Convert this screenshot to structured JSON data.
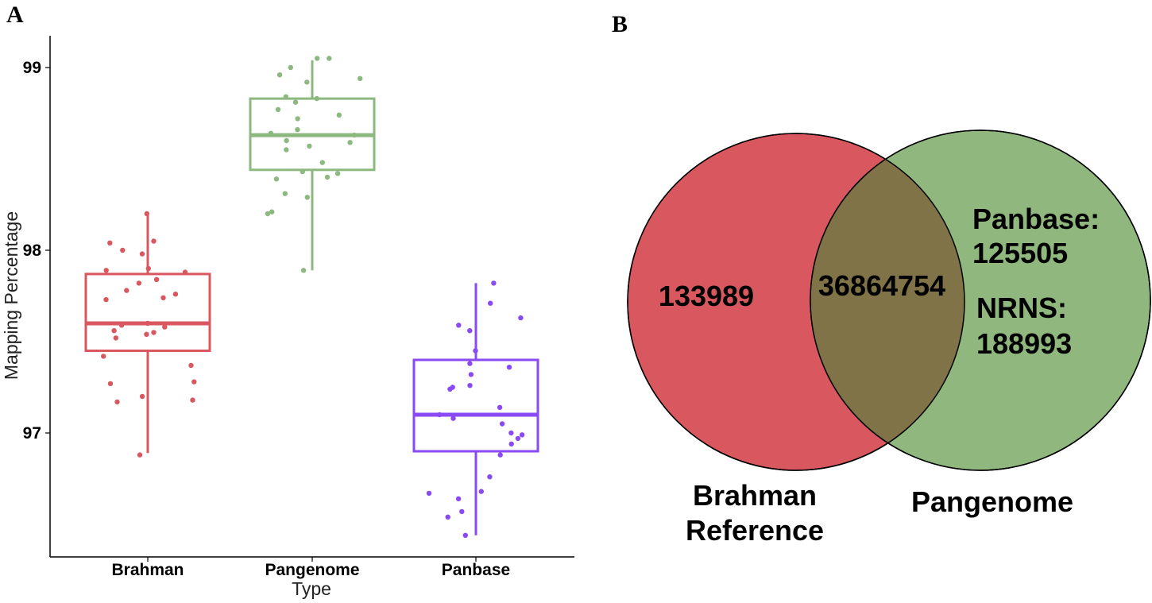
{
  "panels": {
    "a": "A",
    "b": "B"
  },
  "colors": {
    "brahman": "#d9575f",
    "pangenome": "#8db87f",
    "panbase": "#8a4af3",
    "venn_left": "#d9575f",
    "venn_right": "#8fb77e",
    "venn_overlap": "#807347"
  },
  "chart_data": [
    {
      "type": "box",
      "title": "",
      "xlabel": "Type",
      "ylabel": "Mapping Percentage",
      "ylim": [
        96.35,
        99.2
      ],
      "yticks": [
        97,
        98,
        99
      ],
      "categories": [
        "Brahman",
        "Pangenome",
        "Panbase"
      ],
      "boxes": [
        {
          "name": "Brahman",
          "min": 96.89,
          "q1": 97.45,
          "median": 97.6,
          "q3": 97.87,
          "max": 98.21,
          "points": [
            98.2,
            98.05,
            98.04,
            98.0,
            97.98,
            97.9,
            97.89,
            97.88,
            97.84,
            97.82,
            97.78,
            97.76,
            97.74,
            97.73,
            97.6,
            97.59,
            97.58,
            97.56,
            97.55,
            97.54,
            97.52,
            97.42,
            97.37,
            97.28,
            97.27,
            97.2,
            97.18,
            97.17,
            96.88
          ]
        },
        {
          "name": "Pangenome",
          "min": 97.89,
          "q1": 98.44,
          "median": 98.63,
          "q3": 98.83,
          "max": 99.04,
          "points": [
            99.05,
            99.05,
            99.0,
            98.96,
            98.94,
            98.92,
            98.84,
            98.83,
            98.81,
            98.77,
            98.74,
            98.72,
            98.66,
            98.64,
            98.63,
            98.6,
            98.59,
            98.57,
            98.55,
            98.48,
            98.43,
            98.42,
            98.4,
            98.39,
            98.31,
            98.29,
            98.21,
            98.2,
            97.89
          ]
        },
        {
          "name": "Panbase",
          "min": 96.44,
          "q1": 96.9,
          "median": 97.1,
          "q3": 97.4,
          "max": 97.82,
          "points": [
            97.82,
            97.71,
            97.63,
            97.59,
            97.56,
            97.45,
            97.38,
            97.36,
            97.32,
            97.26,
            97.25,
            97.24,
            97.14,
            97.1,
            97.08,
            97.05,
            97.0,
            96.99,
            96.97,
            96.94,
            96.88,
            96.76,
            96.68,
            96.67,
            96.64,
            96.57,
            96.54,
            96.44
          ]
        }
      ]
    },
    {
      "type": "venn",
      "sets": [
        {
          "name": "Brahman\nReference",
          "label_lines": [
            "Brahman",
            "Reference"
          ],
          "only": "133989"
        },
        {
          "name": "Pangenome",
          "label_lines": [
            "Pangenome"
          ],
          "only_lines": [
            "Panbase:",
            "125505",
            "NRNS:",
            "188993"
          ]
        }
      ],
      "intersection": "36864754"
    }
  ]
}
